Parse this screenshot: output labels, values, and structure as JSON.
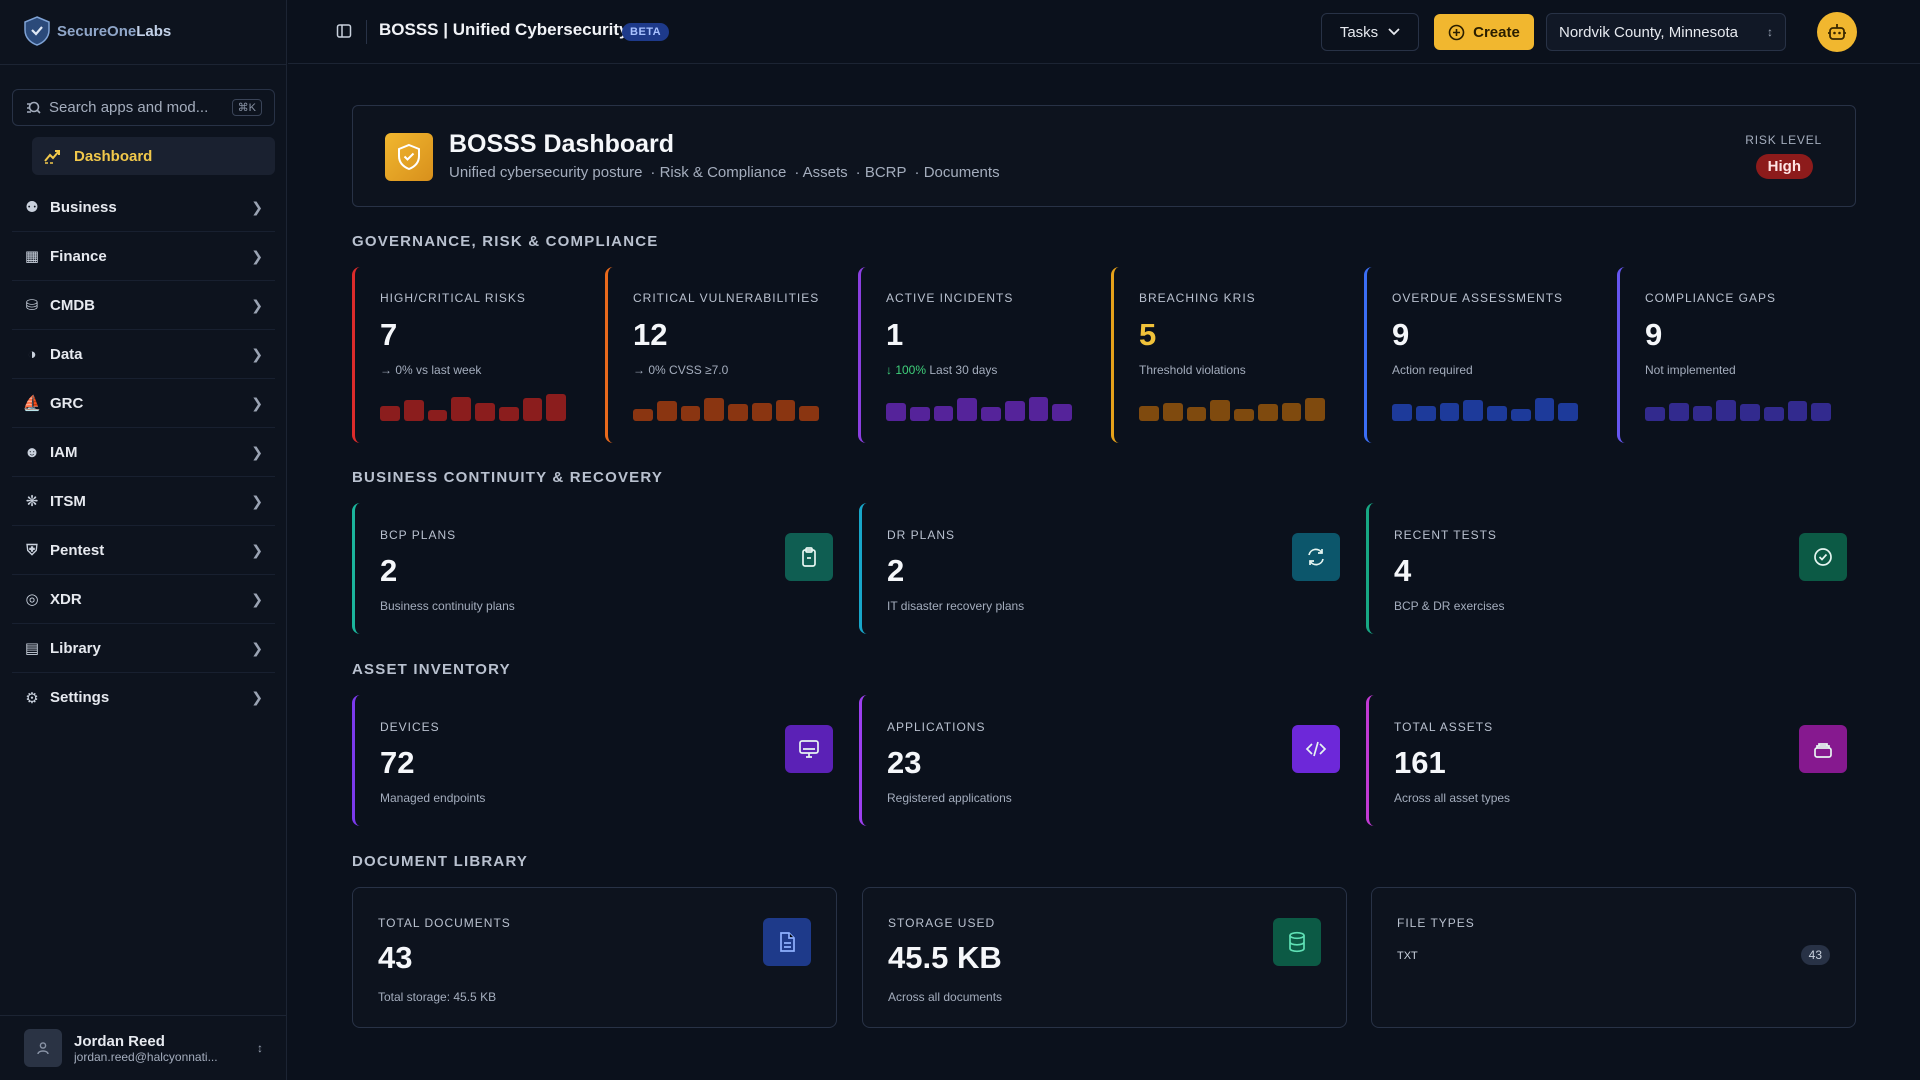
{
  "sidebar": {
    "logo": {
      "part1": "SecureOne",
      "part2": "Labs"
    },
    "search": {
      "placeholder": "Search apps and mod...",
      "shortcut": "⌘K"
    },
    "dashboard_label": "Dashboard",
    "items": [
      {
        "label": "Business",
        "icon": "users-icon"
      },
      {
        "label": "Finance",
        "icon": "wallet-icon"
      },
      {
        "label": "CMDB",
        "icon": "database-icon"
      },
      {
        "label": "Data",
        "icon": "data-icon"
      },
      {
        "label": "GRC",
        "icon": "bank-icon"
      },
      {
        "label": "IAM",
        "icon": "user-key-icon"
      },
      {
        "label": "ITSM",
        "icon": "network-icon"
      },
      {
        "label": "Pentest",
        "icon": "shield-icon"
      },
      {
        "label": "XDR",
        "icon": "target-icon"
      },
      {
        "label": "Library",
        "icon": "book-icon"
      },
      {
        "label": "Settings",
        "icon": "gear-icon"
      }
    ],
    "user": {
      "name": "Jordan Reed",
      "email": "jordan.reed@halcyonnati..."
    }
  },
  "header": {
    "title": "BOSSS | Unified Cybersecurity",
    "badge": "BETA",
    "tasks_label": "Tasks",
    "create_label": "Create",
    "location": "Nordvik County, Minnesota"
  },
  "hero": {
    "title": "BOSSS Dashboard",
    "subtitle": "Unified cybersecurity posture",
    "links": [
      "Risk & Compliance",
      "Assets",
      "BCRP",
      "Documents"
    ],
    "risk_label": "RISK LEVEL",
    "risk_value": "High"
  },
  "sections": {
    "grc": "GOVERNANCE, RISK & COMPLIANCE",
    "bcr": "BUSINESS CONTINUITY & RECOVERY",
    "assets": "ASSET INVENTORY",
    "docs": "DOCUMENT LIBRARY"
  },
  "grc_cards": [
    {
      "label": "HIGH/CRITICAL RISKS",
      "value": "7",
      "trend": "→ 0%",
      "sub": "vs last week",
      "color": "#dc2b2b",
      "bar": "#8b1d1d",
      "levels": [
        0.5,
        0.7,
        0.35,
        0.8,
        0.6,
        0.45,
        0.75,
        0.9
      ]
    },
    {
      "label": "CRITICAL VULNERABILITIES",
      "value": "12",
      "trend": "→ 0%",
      "sub": "CVSS ≥7.0",
      "color": "#ea6a1c",
      "bar": "#8a3511",
      "levels": [
        0.4,
        0.65,
        0.5,
        0.75,
        0.55,
        0.6,
        0.7,
        0.5
      ]
    },
    {
      "label": "ACTIVE INCIDENTS",
      "value": "1",
      "trend": "↓ 100%",
      "sub": "Last 30 days",
      "color": "#8b3fe0",
      "bar": "#55239a",
      "levels": [
        0.6,
        0.45,
        0.5,
        0.75,
        0.45,
        0.65,
        0.8,
        0.55
      ]
    },
    {
      "label": "BREACHING KRIS",
      "value": "5",
      "trend": "",
      "sub": "Threshold violations",
      "color": "#e5a11a",
      "bar": "#7f4a0e",
      "levels": [
        0.5,
        0.6,
        0.45,
        0.7,
        0.4,
        0.55,
        0.6,
        0.75
      ]
    },
    {
      "label": "OVERDUE ASSESSMENTS",
      "value": "9",
      "trend": "",
      "sub": "Action required",
      "color": "#3b6ef5",
      "bar": "#1d3a9a",
      "levels": [
        0.55,
        0.5,
        0.6,
        0.7,
        0.5,
        0.4,
        0.75,
        0.6
      ]
    },
    {
      "label": "COMPLIANCE GAPS",
      "value": "9",
      "trend": "",
      "sub": "Not implemented",
      "color": "#6656f0",
      "bar": "#322a8e",
      "levels": [
        0.45,
        0.6,
        0.5,
        0.7,
        0.55,
        0.45,
        0.65,
        0.6
      ]
    }
  ],
  "bcr_cards": [
    {
      "label": "BCP PLANS",
      "value": "2",
      "sub": "Business continuity plans",
      "icon": "clipboard-icon",
      "color": "#1bb59c",
      "icon_bg": "#0f5e52"
    },
    {
      "label": "DR PLANS",
      "value": "2",
      "sub": "IT disaster recovery plans",
      "icon": "refresh-icon",
      "color": "#18a6c9",
      "icon_bg": "#0c566b"
    },
    {
      "label": "RECENT TESTS",
      "value": "4",
      "sub": "BCP & DR exercises",
      "icon": "check-circle-icon",
      "color": "#17a884",
      "icon_bg": "#0c5a45"
    }
  ],
  "asset_cards": [
    {
      "label": "DEVICES",
      "value": "72",
      "sub": "Managed endpoints",
      "icon": "monitor-icon",
      "color": "#7c3aed",
      "icon_bg": "#5b21b6"
    },
    {
      "label": "APPLICATIONS",
      "value": "23",
      "sub": "Registered applications",
      "icon": "code-icon",
      "color": "#9d3ff0",
      "icon_bg": "#6d28d9"
    },
    {
      "label": "TOTAL ASSETS",
      "value": "161",
      "sub": "Across all asset types",
      "icon": "layers-icon",
      "color": "#c23ad4",
      "icon_bg": "#86198f"
    }
  ],
  "docs": {
    "total": {
      "label": "TOTAL DOCUMENTS",
      "value": "43",
      "sub": "Total storage: 45.5 KB"
    },
    "storage": {
      "label": "STORAGE USED",
      "value": "45.5 KB",
      "sub": "Across all documents"
    },
    "types": {
      "label": "FILE TYPES",
      "name": "TXT",
      "count": "43"
    }
  }
}
